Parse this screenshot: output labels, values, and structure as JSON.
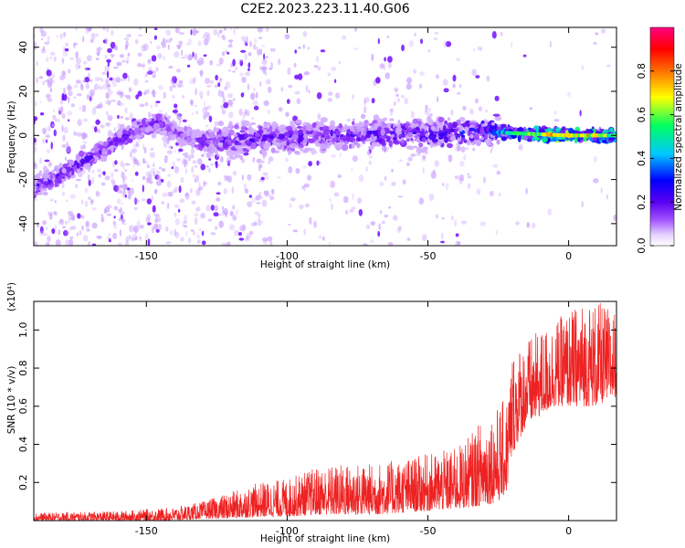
{
  "title": "C2E2.2023.223.11.40.G06",
  "chart_data": [
    {
      "type": "heatmap",
      "xlabel": "Height of straight line (km)",
      "ylabel": "Frequency (Hz)",
      "xlim": [
        -190,
        17
      ],
      "ylim": [
        -50,
        49
      ],
      "xticks": [
        -150,
        -100,
        -50,
        0
      ],
      "xtick_labels": [
        "-150",
        "-100",
        "-50",
        "0"
      ],
      "yticks": [
        -40,
        -20,
        0,
        20,
        40
      ],
      "ytick_labels": [
        "-40",
        "-20",
        "0",
        "20",
        "40"
      ],
      "colorbar": {
        "label": "Normalized spectral amplitude",
        "range": [
          0,
          1
        ],
        "ticks": [
          0,
          0.2,
          0.4,
          0.6,
          0.8
        ],
        "tick_labels": [
          "0.0",
          "0.2",
          "0.4",
          "0.6",
          "0.8"
        ],
        "colormap": [
          "#ffffff",
          "#e0c8ff",
          "#9a40ff",
          "#5a00f0",
          "#0000ff",
          "#00c8ff",
          "#00ff60",
          "#ffff00",
          "#ff6000",
          "#ff0000",
          "#ff0080"
        ]
      },
      "ridge": {
        "x": [
          -190,
          -180,
          -170,
          -160,
          -150,
          -145,
          -140,
          -130,
          -120,
          -100,
          -80,
          -60,
          -40,
          -30,
          -20,
          0,
          17
        ],
        "y": [
          -23,
          -18,
          -10,
          -2,
          4,
          6,
          1,
          -3,
          -2,
          -1,
          0,
          1,
          1,
          2,
          1,
          0,
          0
        ],
        "amplitude": [
          0.35,
          0.35,
          0.32,
          0.3,
          0.3,
          0.3,
          0.25,
          0.3,
          0.35,
          0.35,
          0.35,
          0.38,
          0.4,
          0.45,
          0.55,
          0.75,
          0.6
        ]
      },
      "colors": {
        "noise": "#c79bff",
        "core": "#6a00ff"
      }
    },
    {
      "type": "line",
      "xlabel": "Height of straight line (km)",
      "ylabel": "SNR (10 * v/v)",
      "y_multiplier": "(x10⁴)",
      "xlim": [
        -190,
        17
      ],
      "ylim": [
        0,
        1.15
      ],
      "xticks": [
        -150,
        -100,
        -50,
        0
      ],
      "xtick_labels": [
        "-150",
        "-100",
        "-50",
        "0"
      ],
      "yticks": [
        0.2,
        0.4,
        0.6,
        0.8,
        1.0
      ],
      "ytick_labels": [
        "0.2",
        "0.4",
        "0.6",
        "0.8",
        "1.0"
      ],
      "series": [
        {
          "color": "#ee2222",
          "envelope_x": [
            -190,
            -160,
            -140,
            -130,
            -120,
            -110,
            -100,
            -90,
            -80,
            -70,
            -60,
            -50,
            -40,
            -35,
            -30,
            -25,
            -22,
            -20,
            -15,
            -10,
            -5,
            0,
            5,
            10,
            17
          ],
          "envelope_min": [
            0.0,
            0.0,
            0.0,
            0.01,
            0.01,
            0.02,
            0.02,
            0.03,
            0.03,
            0.03,
            0.04,
            0.05,
            0.06,
            0.07,
            0.08,
            0.1,
            0.15,
            0.35,
            0.5,
            0.55,
            0.6,
            0.6,
            0.6,
            0.6,
            0.65
          ],
          "envelope_max": [
            0.04,
            0.05,
            0.07,
            0.1,
            0.15,
            0.2,
            0.22,
            0.28,
            0.3,
            0.3,
            0.32,
            0.35,
            0.38,
            0.45,
            0.55,
            0.6,
            0.65,
            0.9,
            0.95,
            1.0,
            1.05,
            1.1,
            1.15,
            1.15,
            1.1
          ]
        }
      ]
    }
  ]
}
